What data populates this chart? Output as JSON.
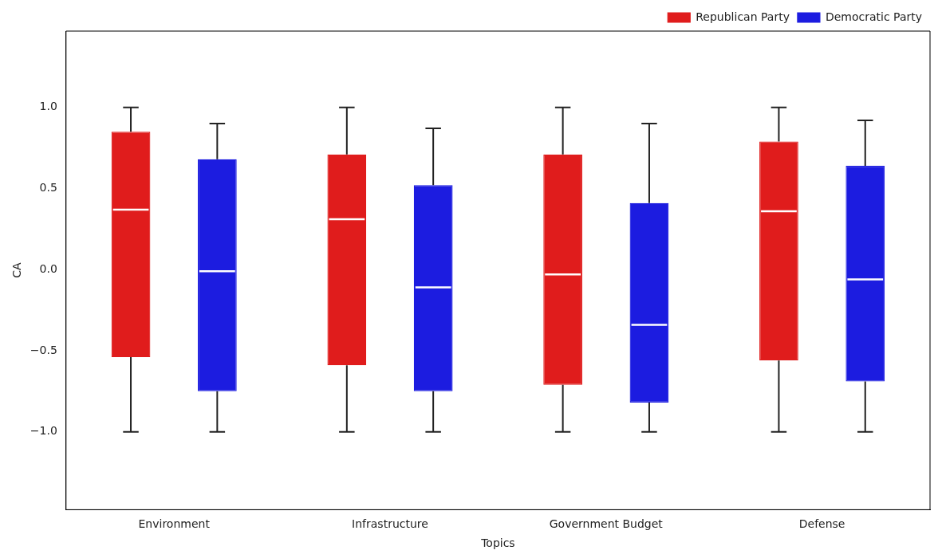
{
  "chart_data": {
    "type": "box",
    "xlabel": "Topics",
    "ylabel": "CA",
    "categories": [
      "Environment",
      "Infrastructure",
      "Government Budget",
      "Defense"
    ],
    "series": [
      {
        "name": "Republican Party",
        "color": "#e01c1c",
        "boxes": [
          {
            "low": -1.0,
            "q1": -0.54,
            "median": 0.37,
            "q3": 0.85,
            "high": 1.0
          },
          {
            "low": -1.0,
            "q1": -0.59,
            "median": 0.31,
            "q3": 0.71,
            "high": 1.0
          },
          {
            "low": -1.0,
            "q1": -0.71,
            "median": -0.03,
            "q3": 0.71,
            "high": 1.0
          },
          {
            "low": -1.0,
            "q1": -0.56,
            "median": 0.36,
            "q3": 0.79,
            "high": 1.0
          }
        ]
      },
      {
        "name": "Democratic Party",
        "color": "#1c1ce0",
        "boxes": [
          {
            "low": -1.0,
            "q1": -0.75,
            "median": -0.01,
            "q3": 0.68,
            "high": 0.9
          },
          {
            "low": -1.0,
            "q1": -0.75,
            "median": -0.11,
            "q3": 0.52,
            "high": 0.87
          },
          {
            "low": -1.0,
            "q1": -0.82,
            "median": -0.34,
            "q3": 0.41,
            "high": 0.9
          },
          {
            "low": -1.0,
            "q1": -0.69,
            "median": -0.06,
            "q3": 0.64,
            "high": 0.92
          }
        ]
      }
    ],
    "ylim": [
      -1.48,
      1.47
    ],
    "yticks": [
      {
        "value": -1,
        "label": "−1.0"
      },
      {
        "value": -0.5,
        "label": "−0.5"
      },
      {
        "value": 0,
        "label": "0.0"
      },
      {
        "value": 0.5,
        "label": "0.5"
      },
      {
        "value": 1,
        "label": "1.0"
      }
    ],
    "grid": false,
    "legend": "top right"
  }
}
